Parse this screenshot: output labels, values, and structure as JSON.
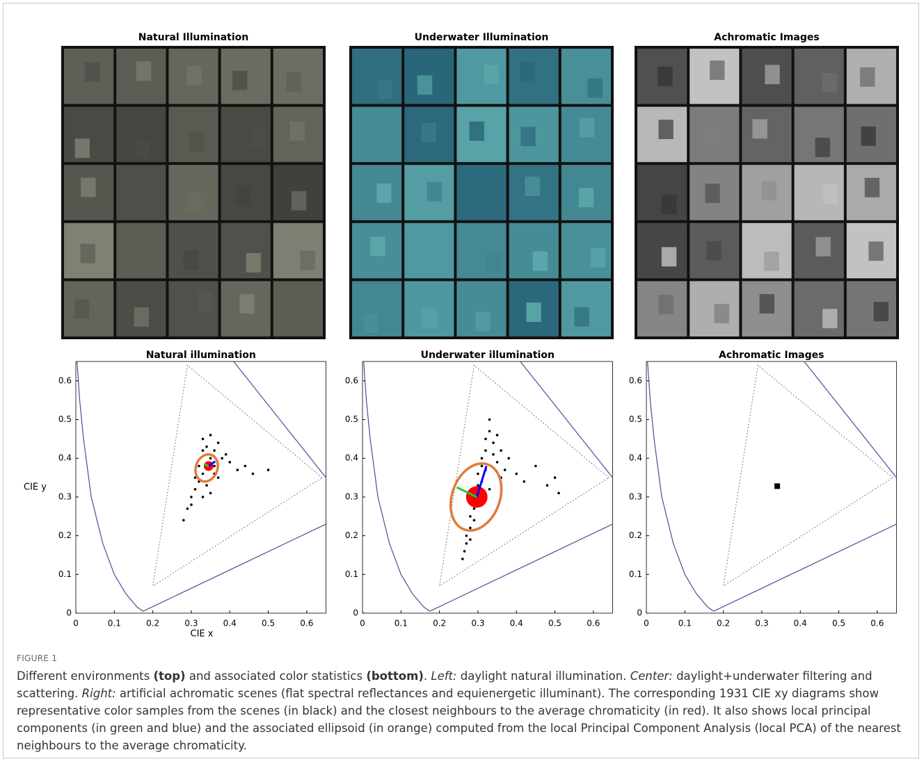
{
  "panels": [
    {
      "title": "Natural Illumination"
    },
    {
      "title": "Underwater Illumination"
    },
    {
      "title": "Achromatic Images"
    }
  ],
  "chart_data": [
    {
      "type": "scatter",
      "title": "Natural illumination",
      "xlabel": "CIE x",
      "ylabel": "CIE y",
      "xlim": [
        0,
        0.65
      ],
      "ylim": [
        0,
        0.65
      ],
      "xticks": [
        0,
        0.1,
        0.2,
        0.3,
        0.4,
        0.5,
        0.6
      ],
      "yticks": [
        0,
        0.1,
        0.2,
        0.3,
        0.4,
        0.5,
        0.6
      ],
      "lines": [
        {
          "x": [
            0.003,
            0.01,
            0.02,
            0.04,
            0.07,
            0.1,
            0.13,
            0.16,
            0.175,
            0.65
          ],
          "y": [
            0.65,
            0.55,
            0.45,
            0.3,
            0.18,
            0.1,
            0.05,
            0.015,
            0.005,
            0.23
          ],
          "color": "#4b4b9b",
          "style": "solid"
        },
        {
          "x": [
            0.41,
            0.65
          ],
          "y": [
            0.65,
            0.35
          ],
          "color": "#4b4b9b",
          "style": "solid"
        },
        {
          "x": [
            0.64,
            0.29,
            0.2,
            0.64
          ],
          "y": [
            0.35,
            0.64,
            0.07,
            0.35
          ],
          "color": "#555555",
          "style": "dotted"
        }
      ],
      "points": {
        "x": [
          0.34,
          0.33,
          0.35,
          0.32,
          0.36,
          0.31,
          0.37,
          0.3,
          0.38,
          0.29,
          0.33,
          0.35,
          0.34,
          0.32,
          0.36,
          0.4,
          0.42,
          0.44,
          0.46,
          0.5,
          0.28,
          0.3,
          0.31,
          0.33,
          0.37,
          0.39,
          0.35,
          0.34,
          0.33,
          0.36
        ],
        "y": [
          0.38,
          0.36,
          0.4,
          0.34,
          0.42,
          0.32,
          0.44,
          0.3,
          0.4,
          0.27,
          0.45,
          0.46,
          0.33,
          0.38,
          0.36,
          0.39,
          0.37,
          0.38,
          0.36,
          0.37,
          0.24,
          0.28,
          0.35,
          0.42,
          0.35,
          0.41,
          0.31,
          0.43,
          0.3,
          0.38
        ],
        "color": "#000000",
        "marker": "circle"
      },
      "mean": {
        "x": 0.345,
        "y": 0.38,
        "color": "#ff0000"
      },
      "ellipse": {
        "cx": 0.34,
        "cy": 0.375,
        "a": 0.036,
        "b": 0.028,
        "angle": 70,
        "color": "#e07b39"
      },
      "components": [
        {
          "x": [
            0.345,
            0.362
          ],
          "y": [
            0.38,
            0.392
          ],
          "color": "#0000ff"
        },
        {
          "x": [
            0.345,
            0.333
          ],
          "y": [
            0.38,
            0.385
          ],
          "color": "#22cc22"
        }
      ]
    },
    {
      "type": "scatter",
      "title": "Underwater illumination",
      "xlim": [
        0,
        0.65
      ],
      "ylim": [
        0,
        0.65
      ],
      "xticks": [
        0,
        0.1,
        0.2,
        0.3,
        0.4,
        0.5,
        0.6
      ],
      "yticks": [
        0,
        0.1,
        0.2,
        0.3,
        0.4,
        0.5,
        0.6
      ],
      "lines": [
        {
          "x": [
            0.003,
            0.01,
            0.02,
            0.04,
            0.07,
            0.1,
            0.13,
            0.16,
            0.175,
            0.65
          ],
          "y": [
            0.65,
            0.55,
            0.45,
            0.3,
            0.18,
            0.1,
            0.05,
            0.015,
            0.005,
            0.23
          ],
          "color": "#4b4b9b",
          "style": "solid"
        },
        {
          "x": [
            0.41,
            0.65
          ],
          "y": [
            0.65,
            0.35
          ],
          "color": "#4b4b9b",
          "style": "solid"
        },
        {
          "x": [
            0.64,
            0.29,
            0.2,
            0.64
          ],
          "y": [
            0.35,
            0.64,
            0.07,
            0.35
          ],
          "color": "#555555",
          "style": "dotted"
        }
      ],
      "points": {
        "x": [
          0.26,
          0.265,
          0.27,
          0.27,
          0.28,
          0.28,
          0.29,
          0.29,
          0.3,
          0.3,
          0.31,
          0.31,
          0.32,
          0.32,
          0.33,
          0.33,
          0.34,
          0.34,
          0.35,
          0.36,
          0.37,
          0.38,
          0.4,
          0.42,
          0.45,
          0.48,
          0.5,
          0.51,
          0.3,
          0.31,
          0.29,
          0.32,
          0.33,
          0.28,
          0.36,
          0.35
        ],
        "y": [
          0.14,
          0.16,
          0.18,
          0.2,
          0.22,
          0.25,
          0.27,
          0.3,
          0.33,
          0.36,
          0.38,
          0.4,
          0.42,
          0.45,
          0.47,
          0.5,
          0.44,
          0.41,
          0.39,
          0.42,
          0.37,
          0.4,
          0.36,
          0.34,
          0.38,
          0.33,
          0.35,
          0.31,
          0.28,
          0.34,
          0.24,
          0.37,
          0.32,
          0.19,
          0.35,
          0.46
        ],
        "color": "#000000",
        "marker": "circle"
      },
      "mean": {
        "x": 0.297,
        "y": 0.3,
        "color": "#ff0000"
      },
      "ellipse": {
        "cx": 0.295,
        "cy": 0.3,
        "a": 0.09,
        "b": 0.062,
        "angle": 70,
        "color": "#e07b39"
      },
      "components": [
        {
          "x": [
            0.297,
            0.322
          ],
          "y": [
            0.3,
            0.38
          ],
          "color": "#0000ff"
        },
        {
          "x": [
            0.297,
            0.245
          ],
          "y": [
            0.3,
            0.325
          ],
          "color": "#22cc22"
        }
      ]
    },
    {
      "type": "scatter",
      "title": "Achromatic Images",
      "xlim": [
        0,
        0.65
      ],
      "ylim": [
        0,
        0.65
      ],
      "xticks": [
        0,
        0.1,
        0.2,
        0.3,
        0.4,
        0.5,
        0.6
      ],
      "yticks": [
        0,
        0.1,
        0.2,
        0.3,
        0.4,
        0.5,
        0.6
      ],
      "lines": [
        {
          "x": [
            0.003,
            0.01,
            0.02,
            0.04,
            0.07,
            0.1,
            0.13,
            0.16,
            0.175,
            0.65
          ],
          "y": [
            0.65,
            0.55,
            0.45,
            0.3,
            0.18,
            0.1,
            0.05,
            0.015,
            0.005,
            0.23
          ],
          "color": "#4b4b9b",
          "style": "solid"
        },
        {
          "x": [
            0.41,
            0.65
          ],
          "y": [
            0.65,
            0.35
          ],
          "color": "#4b4b9b",
          "style": "solid"
        },
        {
          "x": [
            0.64,
            0.29,
            0.2,
            0.64
          ],
          "y": [
            0.35,
            0.64,
            0.07,
            0.35
          ],
          "color": "#555555",
          "style": "dotted"
        }
      ],
      "points": {
        "x": [
          0.34
        ],
        "y": [
          0.328
        ],
        "color": "#000000",
        "marker": "square"
      }
    }
  ],
  "caption": {
    "label": "FIGURE 1",
    "parts": [
      "Different environments ",
      "(top)",
      " and associated color statistics ",
      "(bottom)",
      ". ",
      "Left:",
      " daylight natural illumination. ",
      "Center:",
      " daylight+underwater filtering and scattering. ",
      "Right:",
      " artificial achromatic scenes (flat spectral reflectances and equienergetic illuminant). The corresponding 1931 CIE xy diagrams show representative color samples from the scenes (in black) and the closest neighbours to the average chromaticity (in red). It also shows local principal components (in green and blue) and the associated ellipsoid (in orange) computed from the local Principal Component Analysis (local PCA) of the nearest neighbours to the average chromaticity."
    ]
  }
}
